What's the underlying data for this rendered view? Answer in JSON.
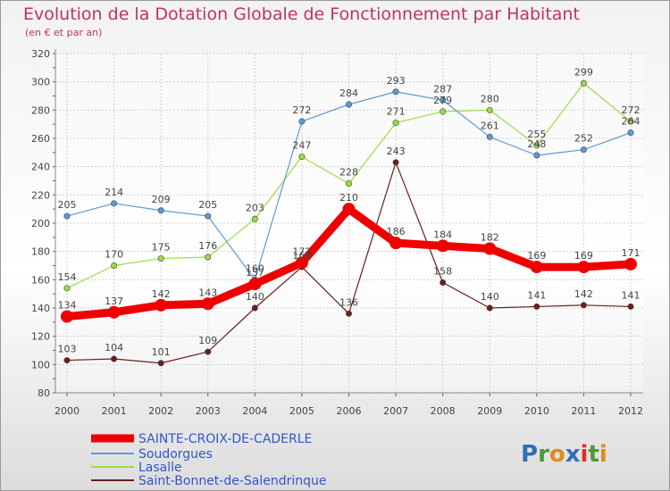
{
  "chart_data": {
    "type": "line",
    "title": "Evolution de la Dotation Globale de Fonctionnement par Habitant",
    "subtitle": "(en € et par an)",
    "x": [
      "2000",
      "2001",
      "2002",
      "2003",
      "2004",
      "2005",
      "2006",
      "2007",
      "2008",
      "2009",
      "2010",
      "2011",
      "2012"
    ],
    "ylim": [
      80,
      320
    ],
    "yticks": [
      80,
      100,
      120,
      140,
      160,
      180,
      200,
      220,
      240,
      260,
      280,
      300,
      320
    ],
    "grid": true,
    "legend_position": "bottom-left",
    "series": [
      {
        "name": "SAINTE-CROIX-DE-CADERLE",
        "color": "#ee0000",
        "values": [
          134,
          137,
          142,
          143,
          157,
          172,
          210,
          186,
          184,
          182,
          169,
          169,
          171
        ],
        "labels": [
          "134",
          "137",
          "142",
          "143",
          "157",
          "172",
          "210",
          "186",
          "184",
          "182",
          "169",
          "169",
          "171"
        ]
      },
      {
        "name": "Soudorgues",
        "color": "#5b9bd5",
        "values": [
          205,
          214,
          209,
          205,
          160,
          272,
          284,
          293,
          287,
          261,
          248,
          252,
          264
        ],
        "labels": [
          "205",
          "214",
          "209",
          "205",
          "160",
          "272",
          "284",
          "293",
          "287",
          "261",
          "248",
          "252",
          "264"
        ]
      },
      {
        "name": "Lasalle",
        "color": "#99dd44",
        "values": [
          154,
          170,
          175,
          176,
          203,
          247,
          228,
          271,
          279,
          280,
          255,
          299,
          272
        ],
        "labels": [
          "154",
          "170",
          "175",
          "176",
          "203",
          "247",
          "228",
          "271",
          "279",
          "280",
          "255",
          "299",
          "272"
        ]
      },
      {
        "name": "Saint-Bonnet-de-Salendrinque",
        "color": "#6b1e1e",
        "values": [
          103,
          104,
          101,
          109,
          140,
          169,
          136,
          243,
          158,
          140,
          141,
          142,
          141
        ],
        "labels": [
          "103",
          "104",
          "101",
          "109",
          "140",
          "169",
          "136",
          "243",
          "158",
          "140",
          "141",
          "142",
          "141"
        ]
      }
    ]
  },
  "brand": {
    "logo_text": "Proxiti"
  }
}
